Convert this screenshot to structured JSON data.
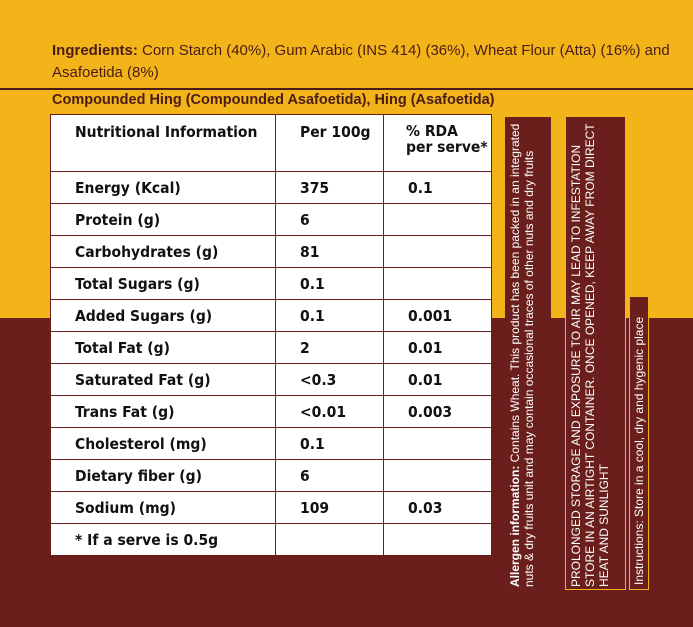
{
  "ingredients": {
    "label": "Ingredients:",
    "text": " Corn Starch (40%), Gum Arabic (INS 414) (36%), Wheat Flour (Atta) (16%) and Asafoetida (8%)"
  },
  "product_name": "Compounded Hing (Compounded Asafoetida), Hing (Asafoetida)",
  "nutrition": {
    "headers": [
      "Nutritional Information",
      "Per 100g",
      "% RDA",
      "per serve*"
    ],
    "rows": [
      {
        "name": "Energy (Kcal)",
        "per100": "375",
        "rda": "0.1"
      },
      {
        "name": "Protein (g)",
        "per100": "6",
        "rda": ""
      },
      {
        "name": "Carbohydrates (g)",
        "per100": "81",
        "rda": ""
      },
      {
        "name": "Total Sugars (g)",
        "per100": "0.1",
        "rda": ""
      },
      {
        "name": "Added Sugars (g)",
        "per100": "0.1",
        "rda": "0.001"
      },
      {
        "name": "Total Fat (g)",
        "per100": "2",
        "rda": "0.01"
      },
      {
        "name": "Saturated Fat (g)",
        "per100": "<0.3",
        "rda": "0.01"
      },
      {
        "name": "Trans Fat (g)",
        "per100": "<0.01",
        "rda": "0.003"
      },
      {
        "name": "Cholesterol (mg)",
        "per100": "0.1",
        "rda": ""
      },
      {
        "name": "Dietary fiber (g)",
        "per100": "6",
        "rda": ""
      },
      {
        "name": "Sodium (mg)",
        "per100": "109",
        "rda": "0.03"
      }
    ],
    "footnote": "* If a serve is 0.5g"
  },
  "allergen": {
    "label": "Allergen information:",
    "text": " Contains Wheat. This product has been packed in an integrated nuts & dry fruits unit and may contain occasional traces of other nuts and dry fruits"
  },
  "storage": "PROLONGED STORAGE AND EXPOSURE TO AIR MAY LEAD TO INFESTATION STORE IN AN AIRTIGHT CONTAINER. ONCE OPENED, KEEP AWAY FROM DIRECT HEAT AND SUNLIGHT",
  "instructions": "Instructions: Store in a cool, dry and hygenic place",
  "colors": {
    "background_top": "#f3b41a",
    "background_bottom": "#6b1f1c",
    "text_dark": "#4a1c18",
    "table_bg": "#ffffff"
  }
}
